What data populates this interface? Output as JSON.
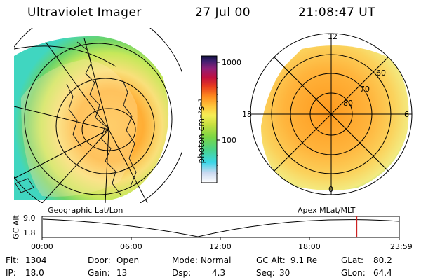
{
  "header": {
    "title": "Ultraviolet Imager",
    "date": "27 Jul 00",
    "time": "21:08:47 UT"
  },
  "colorbar": {
    "unit_label": "photon cm⁻²s⁻¹",
    "tick_top": "1000",
    "tick_mid": "100"
  },
  "polar": {
    "mlt_top": "12",
    "mlt_left": "18",
    "mlt_right": "6",
    "mlt_bottom": "0",
    "lat_60": "60",
    "lat_70": "70",
    "lat_80": "80"
  },
  "map_labels": {
    "left": "Geographic Lat/Lon",
    "right": "Apex MLat/MLT"
  },
  "timeline": {
    "axis_label": "GC Alt",
    "y_top": "9.0",
    "y_bottom": "1.8",
    "ticks": [
      "00:00",
      "06:00",
      "12:00",
      "18:00",
      "23:59"
    ],
    "marker_time_hours": 21.15
  },
  "info": {
    "flt_label": "Flt:",
    "flt_value": "1304",
    "ip_label": "IP:",
    "ip_value": "18.0",
    "door_label": "Door:",
    "door_value": "Open",
    "gain_label": "Gain:",
    "gain_value": "13",
    "mode_label": "Mode:",
    "mode_value": "Normal",
    "dsp_label": "Dsp:",
    "dsp_value": "4.3",
    "gcalt_label": "GC Alt:",
    "gcalt_value": "9.1 Re",
    "seq_label": "Seq:",
    "seq_value": "30",
    "glat_label": "GLat:",
    "glat_value": "80.2",
    "glon_label": "GLon:",
    "glon_value": "64.4"
  },
  "colors": {
    "marker": "#cc2222",
    "aurora_core": "#ff9b1a",
    "aurora_mid": "#f5dd66",
    "aurora_edge": "#33d6a0"
  }
}
